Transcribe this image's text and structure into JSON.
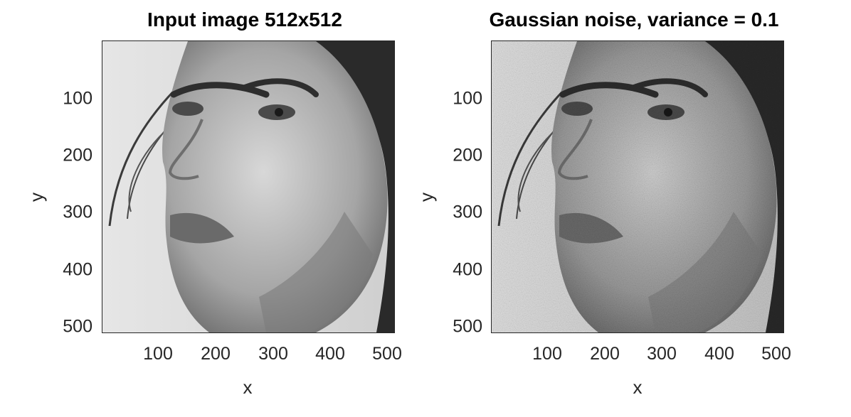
{
  "figure": {
    "panels": [
      {
        "id": "input",
        "title": "Input image 512x512",
        "xlabel": "x",
        "ylabel": "y",
        "xticks": [
          "100",
          "200",
          "300",
          "400",
          "500"
        ],
        "yticks": [
          "100",
          "200",
          "300",
          "400",
          "500"
        ]
      },
      {
        "id": "noisy",
        "title": "Gaussian noise, variance = 0.1",
        "xlabel": "x",
        "ylabel": "y",
        "xticks": [
          "100",
          "200",
          "300",
          "400",
          "500"
        ],
        "yticks": [
          "100",
          "200",
          "300",
          "400",
          "500"
        ]
      }
    ]
  },
  "image": {
    "size": "512x512",
    "colormap": "grayscale",
    "noise_variance": 0.1
  }
}
